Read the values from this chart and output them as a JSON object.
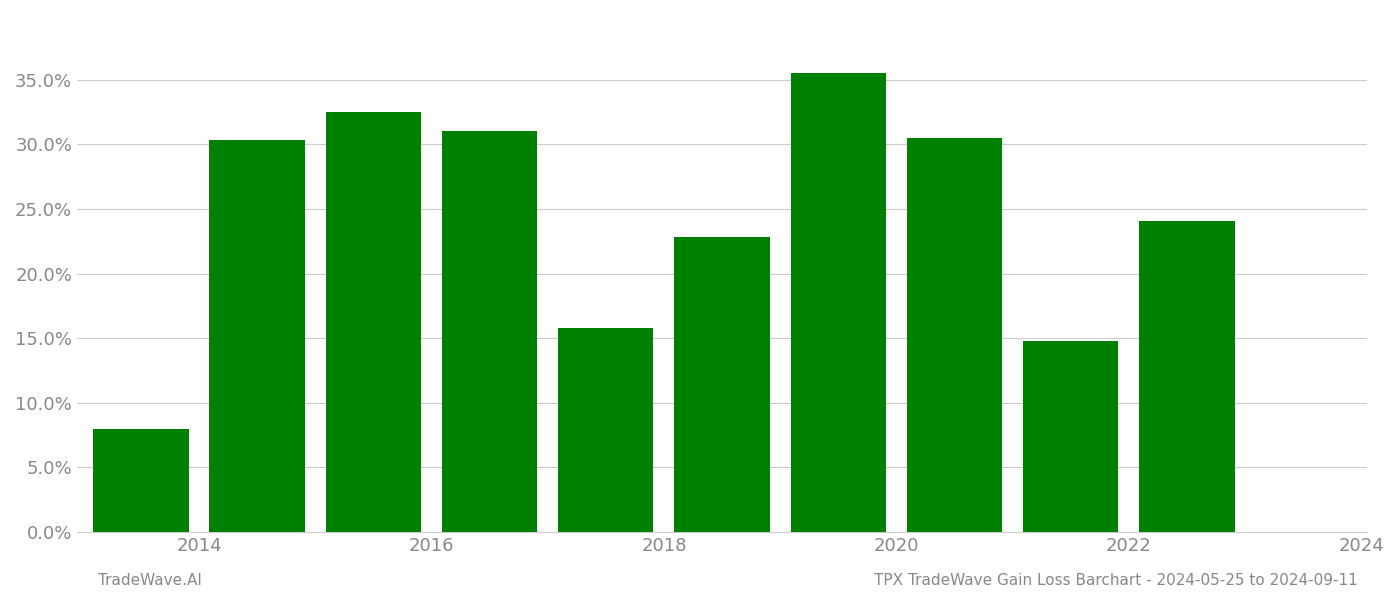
{
  "years": [
    2014,
    2015,
    2016,
    2017,
    2018,
    2019,
    2020,
    2021,
    2022,
    2023
  ],
  "values": [
    0.08,
    0.303,
    0.325,
    0.31,
    0.158,
    0.228,
    0.355,
    0.305,
    0.148,
    0.241
  ],
  "bar_color": "#008000",
  "background_color": "#ffffff",
  "grid_color": "#cccccc",
  "label_color": "#888888",
  "title_right": "TPX TradeWave Gain Loss Barchart - 2024-05-25 to 2024-09-11",
  "title_left": "TradeWave.AI",
  "ylim": [
    0,
    0.4
  ],
  "yticks": [
    0.0,
    0.05,
    0.1,
    0.15,
    0.2,
    0.25,
    0.3,
    0.35
  ],
  "xtick_positions": [
    2014.5,
    2016.5,
    2018.5,
    2020.5,
    2022.5,
    2024.5
  ],
  "xtick_labels": [
    "2014",
    "2016",
    "2018",
    "2020",
    "2022",
    "2024"
  ],
  "xlim": [
    2013.45,
    2024.55
  ],
  "bar_width": 0.82,
  "figsize": [
    14.0,
    6.0
  ],
  "dpi": 100
}
